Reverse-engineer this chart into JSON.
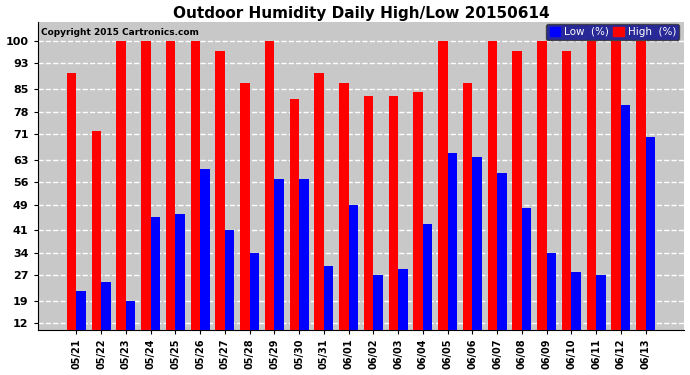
{
  "title": "Outdoor Humidity Daily High/Low 20150614",
  "copyright": "Copyright 2015 Cartronics.com",
  "categories": [
    "05/21",
    "05/22",
    "05/23",
    "05/24",
    "05/25",
    "05/26",
    "05/27",
    "05/28",
    "05/29",
    "05/30",
    "05/31",
    "06/01",
    "06/02",
    "06/03",
    "06/04",
    "06/05",
    "06/06",
    "06/07",
    "06/08",
    "06/09",
    "06/10",
    "06/11",
    "06/12",
    "06/13"
  ],
  "high_values": [
    90,
    72,
    100,
    100,
    100,
    100,
    97,
    87,
    100,
    82,
    90,
    87,
    83,
    83,
    84,
    100,
    87,
    100,
    97,
    100,
    97,
    100,
    100,
    100
  ],
  "low_values": [
    22,
    25,
    19,
    45,
    46,
    60,
    41,
    34,
    57,
    57,
    30,
    49,
    27,
    29,
    43,
    65,
    64,
    59,
    48,
    34,
    28,
    27,
    80,
    70
  ],
  "high_color": "#ff0000",
  "low_color": "#0000ff",
  "bg_color": "#ffffff",
  "plot_bg_color": "#c8c8c8",
  "grid_color": "#ffffff",
  "yticks": [
    12,
    19,
    27,
    34,
    41,
    49,
    56,
    63,
    71,
    78,
    85,
    93,
    100
  ],
  "ylim": [
    10,
    106
  ],
  "bar_width": 0.38,
  "title_fontsize": 11,
  "legend_label_low": "Low  (%)",
  "legend_label_high": "High  (%)"
}
